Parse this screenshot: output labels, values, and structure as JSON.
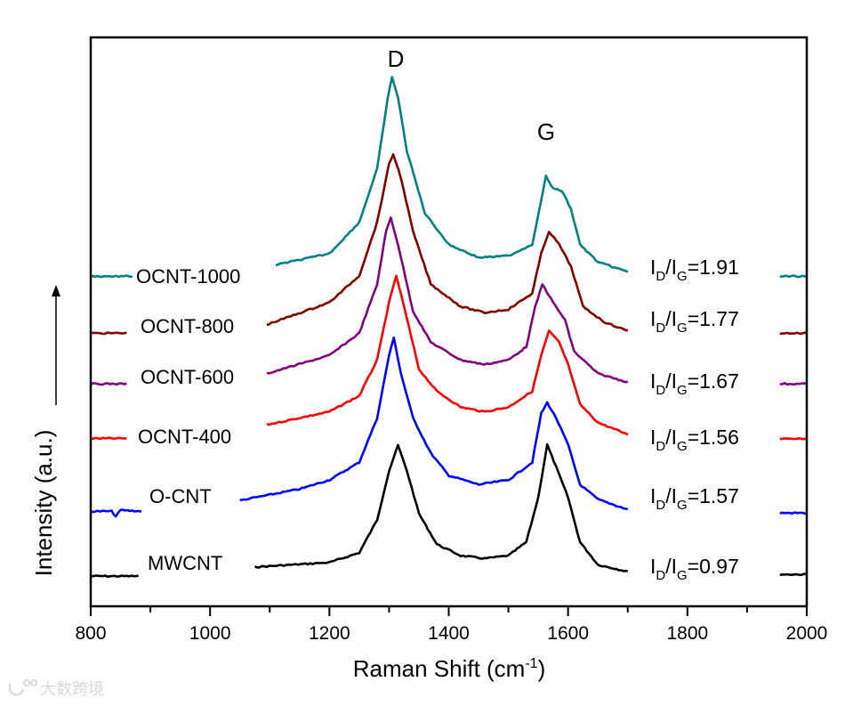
{
  "chart_data": {
    "type": "line",
    "title": "",
    "xlabel": "Raman Shift (cm",
    "xlabel_sup": "-1",
    "xlabel_close": ")",
    "ylabel": "Intensity (a.u.)",
    "xlim": [
      800,
      2000
    ],
    "ylim": [
      0,
      100
    ],
    "xticks": [
      800,
      1000,
      1200,
      1400,
      1600,
      1800,
      2000
    ],
    "xminor_step": 100,
    "grid": false,
    "peak_labels": {
      "D": "D",
      "G": "G"
    },
    "ratio_prefix": "I",
    "ratio_sub_d": "D",
    "ratio_slash": "/I",
    "ratio_sub_g": "G",
    "series": [
      {
        "name": "MWCNT",
        "color": "#000000",
        "ratio": "=0.97",
        "left": [
          [
            800,
            5.3
          ],
          [
            880,
            5.3
          ]
        ],
        "main": [
          [
            1075,
            6.9
          ],
          [
            1200,
            7.7
          ],
          [
            1250,
            9.4
          ],
          [
            1280,
            15.2
          ],
          [
            1300,
            23.8
          ],
          [
            1315,
            28.3
          ],
          [
            1330,
            23.8
          ],
          [
            1350,
            16.3
          ],
          [
            1380,
            10.9
          ],
          [
            1420,
            8.9
          ],
          [
            1460,
            8.4
          ],
          [
            1500,
            8.9
          ],
          [
            1530,
            11.3
          ],
          [
            1550,
            19.1
          ],
          [
            1565,
            28.4
          ],
          [
            1580,
            24.5
          ],
          [
            1600,
            19.1
          ],
          [
            1620,
            11.3
          ],
          [
            1650,
            7.3
          ],
          [
            1700,
            6.1
          ]
        ],
        "right": [
          [
            1955,
            5.6
          ],
          [
            2000,
            5.6
          ]
        ]
      },
      {
        "name": "O-CNT",
        "color": "#0000ff",
        "ratio": "=1.57",
        "left": [
          [
            800,
            16.7
          ],
          [
            835,
            16.7
          ],
          [
            842,
            15.8
          ],
          [
            850,
            16.9
          ],
          [
            885,
            16.7
          ]
        ],
        "main": [
          [
            1050,
            18.6
          ],
          [
            1150,
            20.6
          ],
          [
            1200,
            22.2
          ],
          [
            1250,
            25.3
          ],
          [
            1280,
            33.1
          ],
          [
            1300,
            44.1
          ],
          [
            1308,
            47.2
          ],
          [
            1320,
            40.9
          ],
          [
            1340,
            33.1
          ],
          [
            1370,
            26.9
          ],
          [
            1400,
            23.0
          ],
          [
            1450,
            21.4
          ],
          [
            1500,
            22.2
          ],
          [
            1540,
            25.3
          ],
          [
            1555,
            33.9
          ],
          [
            1565,
            35.8
          ],
          [
            1580,
            33.1
          ],
          [
            1600,
            28.4
          ],
          [
            1620,
            21.4
          ],
          [
            1650,
            18.8
          ],
          [
            1700,
            17.0
          ]
        ],
        "right": [
          [
            1955,
            16.4
          ],
          [
            2000,
            16.4
          ]
        ]
      },
      {
        "name": "OCNT-400",
        "color": "#ff0000",
        "ratio": "=1.56",
        "left": [
          [
            800,
            29.5
          ],
          [
            860,
            29.5
          ]
        ],
        "main": [
          [
            1095,
            31.9
          ],
          [
            1200,
            34.2
          ],
          [
            1250,
            37.0
          ],
          [
            1280,
            43.3
          ],
          [
            1300,
            53.4
          ],
          [
            1312,
            58.1
          ],
          [
            1325,
            52.7
          ],
          [
            1350,
            41.7
          ],
          [
            1380,
            37.8
          ],
          [
            1420,
            35.0
          ],
          [
            1460,
            34.2
          ],
          [
            1500,
            35.0
          ],
          [
            1540,
            37.8
          ],
          [
            1555,
            44.1
          ],
          [
            1568,
            48.4
          ],
          [
            1585,
            46.4
          ],
          [
            1600,
            42.5
          ],
          [
            1620,
            35.5
          ],
          [
            1650,
            32.3
          ],
          [
            1700,
            30.2
          ]
        ],
        "right": [
          [
            1955,
            29.5
          ],
          [
            2000,
            29.5
          ]
        ]
      },
      {
        "name": "OCNT-600",
        "color": "#800080",
        "ratio": "=1.67",
        "left": [
          [
            800,
            39.1
          ],
          [
            860,
            39.1
          ]
        ],
        "main": [
          [
            1095,
            40.9
          ],
          [
            1200,
            44.1
          ],
          [
            1250,
            48.0
          ],
          [
            1280,
            56.6
          ],
          [
            1295,
            65.9
          ],
          [
            1303,
            68.3
          ],
          [
            1315,
            63.6
          ],
          [
            1340,
            51.9
          ],
          [
            1370,
            46.4
          ],
          [
            1420,
            43.3
          ],
          [
            1460,
            42.5
          ],
          [
            1500,
            43.3
          ],
          [
            1530,
            45.6
          ],
          [
            1545,
            52.7
          ],
          [
            1557,
            56.6
          ],
          [
            1575,
            53.4
          ],
          [
            1595,
            50.3
          ],
          [
            1610,
            44.8
          ],
          [
            1650,
            40.9
          ],
          [
            1700,
            39.4
          ]
        ],
        "right": [
          [
            1955,
            39.1
          ],
          [
            2000,
            39.1
          ]
        ]
      },
      {
        "name": "OCNT-800",
        "color": "#800000",
        "ratio": "=1.77",
        "left": [
          [
            800,
            48.0
          ],
          [
            860,
            48.0
          ]
        ],
        "main": [
          [
            1095,
            49.5
          ],
          [
            1200,
            53.4
          ],
          [
            1250,
            58.1
          ],
          [
            1280,
            67.5
          ],
          [
            1300,
            77.7
          ],
          [
            1307,
            79.5
          ],
          [
            1320,
            75.3
          ],
          [
            1340,
            65.9
          ],
          [
            1370,
            56.6
          ],
          [
            1420,
            52.7
          ],
          [
            1460,
            51.6
          ],
          [
            1500,
            52.2
          ],
          [
            1540,
            55.0
          ],
          [
            1555,
            62.0
          ],
          [
            1568,
            65.9
          ],
          [
            1585,
            63.6
          ],
          [
            1605,
            59.7
          ],
          [
            1625,
            52.7
          ],
          [
            1660,
            50.0
          ],
          [
            1700,
            48.4
          ]
        ],
        "right": [
          [
            1955,
            48.0
          ],
          [
            2000,
            48.0
          ]
        ]
      },
      {
        "name": "OCNT-1000",
        "color": "#008080",
        "ratio": "=1.91",
        "left": [
          [
            800,
            58.0
          ],
          [
            870,
            58.0
          ]
        ],
        "main": [
          [
            1110,
            60.0
          ],
          [
            1200,
            62.0
          ],
          [
            1250,
            67.5
          ],
          [
            1280,
            76.9
          ],
          [
            1298,
            89.4
          ],
          [
            1305,
            93.1
          ],
          [
            1315,
            89.4
          ],
          [
            1330,
            80.0
          ],
          [
            1360,
            69.1
          ],
          [
            1400,
            63.6
          ],
          [
            1450,
            61.3
          ],
          [
            1500,
            61.6
          ],
          [
            1540,
            63.6
          ],
          [
            1555,
            71.4
          ],
          [
            1563,
            75.6
          ],
          [
            1575,
            73.4
          ],
          [
            1590,
            73.0
          ],
          [
            1605,
            69.8
          ],
          [
            1620,
            63.6
          ],
          [
            1650,
            60.5
          ],
          [
            1700,
            58.8
          ]
        ],
        "right": [
          [
            1955,
            58.0
          ],
          [
            2000,
            58.0
          ]
        ]
      }
    ]
  },
  "watermark": "大数跨境"
}
